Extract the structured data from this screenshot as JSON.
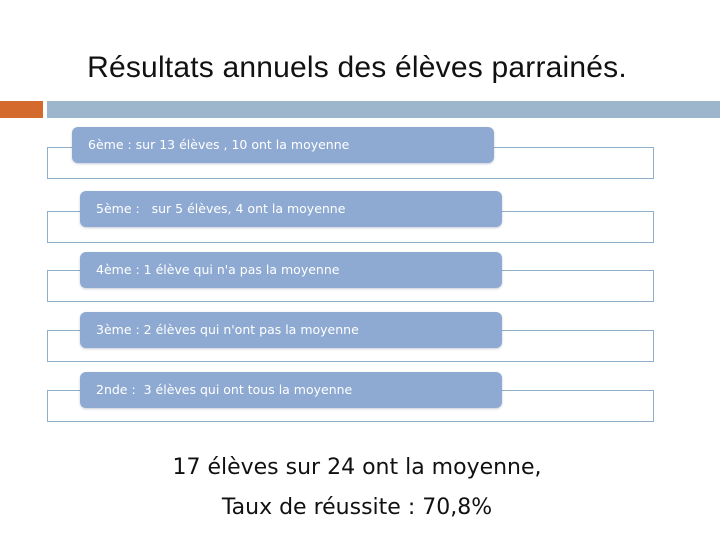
{
  "slide": {
    "title": "Résultats annuels des élèves parrainés."
  },
  "results": [
    {
      "label": "6ème : sur 13 élèves , 10 ont la moyenne"
    },
    {
      "label": "5ème :   sur 5 élèves, 4 ont la moyenne"
    },
    {
      "label": "4ème : 1 élève qui n'a pas la moyenne"
    },
    {
      "label": "3ème : 2 élèves qui n'ont pas la moyenne"
    },
    {
      "label": "2nde :  3 élèves qui ont tous la moyenne"
    }
  ],
  "summary": {
    "line1": "17 élèves sur 24 ont la moyenne,",
    "line2": "Taux de réussite : 70,8%"
  },
  "colors": {
    "accent_orange": "#d46b2c",
    "accent_blue": "#9db6cc",
    "pill_fill": "#8eaad2",
    "row_border": "#8eaecb"
  }
}
